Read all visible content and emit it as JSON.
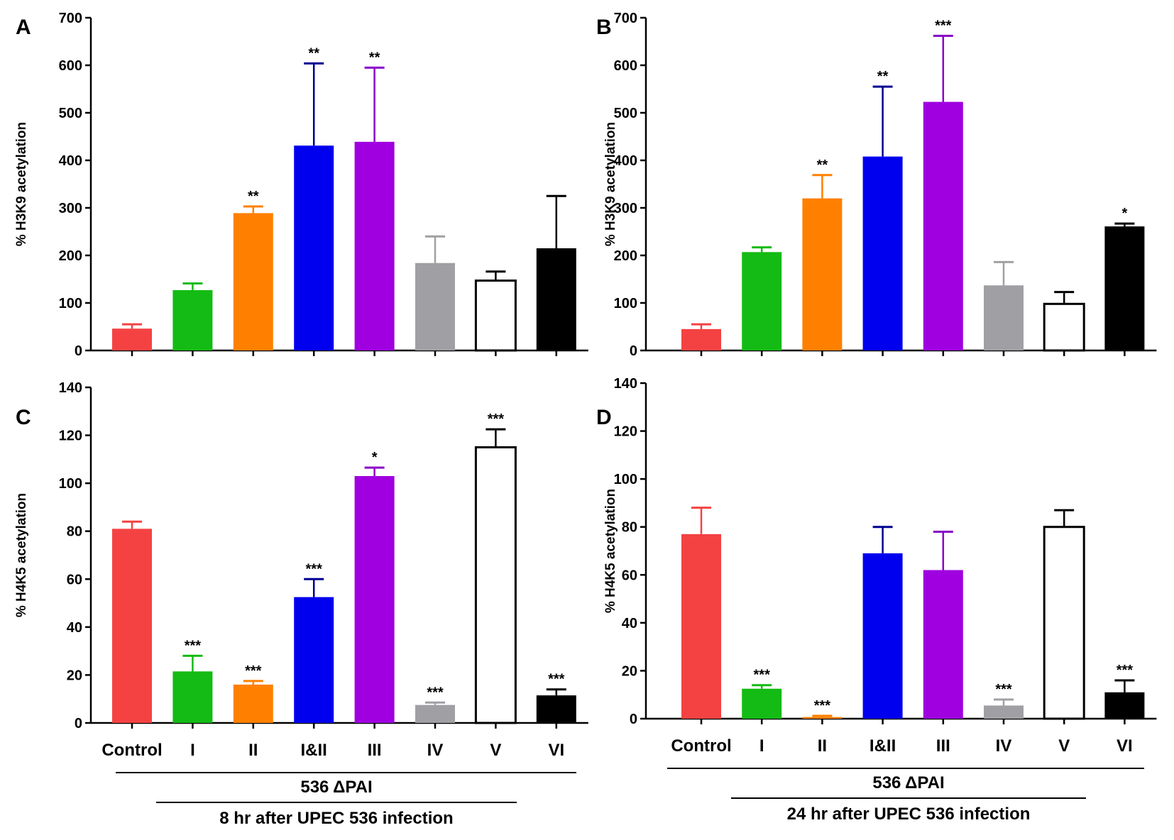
{
  "chart_data": [
    {
      "type": "bar",
      "panel": "A",
      "ylabel": "% H3K9 acetylation",
      "ylim": [
        0,
        700
      ],
      "yticks": [
        "0",
        "100",
        "200",
        "300",
        "400",
        "500",
        "600",
        "700"
      ],
      "categories": [
        "Control",
        "I",
        "II",
        "I&II",
        "III",
        "IV",
        "V",
        "VI"
      ],
      "values": [
        46,
        127,
        289,
        431,
        439,
        184,
        147,
        215
      ],
      "error_upper": [
        55,
        141,
        303,
        604,
        595,
        240,
        166,
        325
      ],
      "significance": [
        "",
        "",
        "**",
        "**",
        "**",
        "",
        "",
        ""
      ]
    },
    {
      "type": "bar",
      "panel": "B",
      "ylabel": "% H3K9 acetylation",
      "ylim": [
        0,
        700
      ],
      "yticks": [
        "0",
        "100",
        "200",
        "300",
        "400",
        "500",
        "600",
        "700"
      ],
      "categories": [
        "Control",
        "I",
        "II",
        "I&II",
        "III",
        "IV",
        "V",
        "VI"
      ],
      "values": [
        45,
        207,
        320,
        408,
        523,
        137,
        98,
        261
      ],
      "error_upper": [
        55,
        217,
        369,
        555,
        662,
        186,
        123,
        267
      ],
      "significance": [
        "",
        "",
        "**",
        "**",
        "***",
        "",
        "",
        "*"
      ]
    },
    {
      "type": "bar",
      "panel": "C",
      "ylabel": "% H4K5 acetylation",
      "ylim": [
        0,
        140
      ],
      "yticks": [
        "0",
        "20",
        "40",
        "60",
        "80",
        "100",
        "120",
        "140"
      ],
      "categories": [
        "Control",
        "I",
        "II",
        "I&II",
        "III",
        "IV",
        "V",
        "VI"
      ],
      "values": [
        81,
        21.5,
        16,
        52.5,
        103,
        7.5,
        115,
        11.5
      ],
      "error_upper": [
        84,
        28,
        17.5,
        60,
        106.5,
        8.5,
        122.5,
        14
      ],
      "significance": [
        "",
        "***",
        "***",
        "***",
        "*",
        "***",
        "***",
        "***"
      ],
      "group_label": "536 ΔPAI",
      "caption": "8 hr after UPEC 536 infection"
    },
    {
      "type": "bar",
      "panel": "D",
      "ylabel": "% H4K5 acetylation",
      "ylim": [
        0,
        140
      ],
      "yticks": [
        "0",
        "20",
        "40",
        "60",
        "80",
        "100",
        "120",
        "140"
      ],
      "categories": [
        "Control",
        "I",
        "II",
        "I&II",
        "III",
        "IV",
        "V",
        "VI"
      ],
      "values": [
        77,
        12.5,
        0.7,
        69,
        62,
        5.5,
        80,
        11
      ],
      "error_upper": [
        88,
        14,
        1.2,
        80,
        78,
        8,
        87,
        16
      ],
      "significance": [
        "",
        "***",
        "***",
        "",
        "",
        "***",
        "",
        "***"
      ],
      "group_label": "536 ΔPAI",
      "caption": "24 hr after UPEC 536 infection"
    }
  ],
  "colors": {
    "fills": [
      "#f44242",
      "#14bb14",
      "#ff8000",
      "#0000ee",
      "#a000e0",
      "#a0a0a4",
      "#ffffff",
      "#000000"
    ],
    "errors": [
      "#f44242",
      "#14bb14",
      "#ff8000",
      "#000090",
      "#8a00c8",
      "#a0a0a4",
      "#000000",
      "#000000"
    ]
  }
}
